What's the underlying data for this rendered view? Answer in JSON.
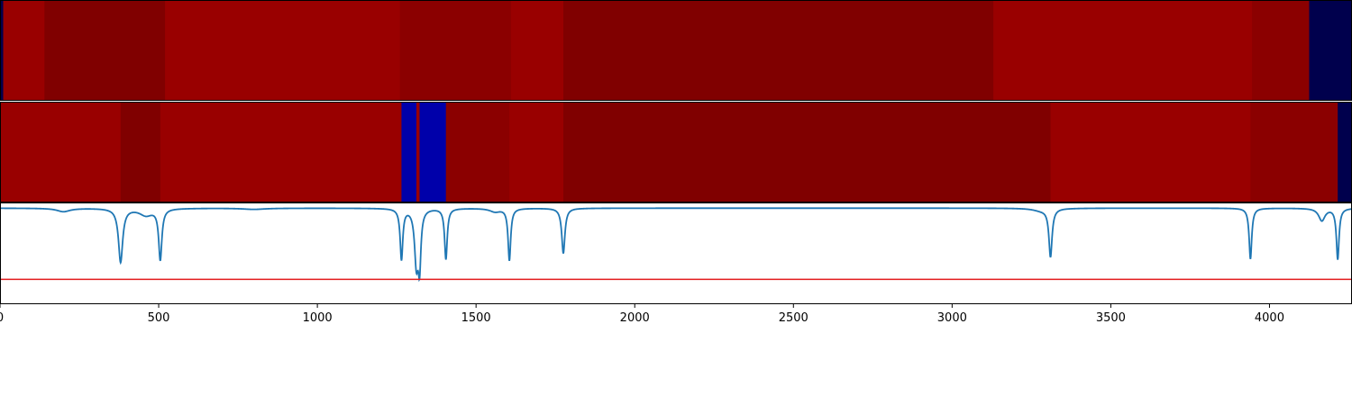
{
  "chart_data": [
    {
      "type": "heatmap",
      "title": "",
      "xlim": [
        0,
        4260
      ],
      "segments": [
        {
          "start": 0,
          "end": 10,
          "color": "#00004d"
        },
        {
          "start": 10,
          "end": 140,
          "color": "#990000"
        },
        {
          "start": 140,
          "end": 520,
          "color": "#800000"
        },
        {
          "start": 520,
          "end": 1260,
          "color": "#990000"
        },
        {
          "start": 1260,
          "end": 1610,
          "color": "#8b0000"
        },
        {
          "start": 1610,
          "end": 1775,
          "color": "#990000"
        },
        {
          "start": 1775,
          "end": 3130,
          "color": "#800000"
        },
        {
          "start": 3130,
          "end": 3945,
          "color": "#990000"
        },
        {
          "start": 3945,
          "end": 4125,
          "color": "#8b0000"
        },
        {
          "start": 4125,
          "end": 4260,
          "color": "#00004d"
        }
      ]
    },
    {
      "type": "heatmap",
      "title": "",
      "xlim": [
        0,
        4260
      ],
      "segments": [
        {
          "start": 0,
          "end": 380,
          "color": "#990000"
        },
        {
          "start": 380,
          "end": 505,
          "color": "#800000"
        },
        {
          "start": 505,
          "end": 1265,
          "color": "#990000"
        },
        {
          "start": 1265,
          "end": 1312,
          "color": "#0000aa"
        },
        {
          "start": 1312,
          "end": 1322,
          "color": "#990000"
        },
        {
          "start": 1322,
          "end": 1405,
          "color": "#0000aa"
        },
        {
          "start": 1405,
          "end": 1605,
          "color": "#8b0000"
        },
        {
          "start": 1605,
          "end": 1775,
          "color": "#990000"
        },
        {
          "start": 1775,
          "end": 3310,
          "color": "#800000"
        },
        {
          "start": 3310,
          "end": 3940,
          "color": "#990000"
        },
        {
          "start": 3940,
          "end": 4215,
          "color": "#8b0000"
        },
        {
          "start": 4215,
          "end": 4260,
          "color": "#00004d"
        }
      ]
    },
    {
      "type": "line",
      "title": "",
      "xlabel": "",
      "ylabel": "",
      "xlim": [
        0,
        4260
      ],
      "ylim": [
        -1.7,
        0.1
      ],
      "x_ticks": [
        0,
        500,
        1000,
        1500,
        2000,
        2500,
        3000,
        3500,
        4000
      ],
      "x_tick_labels": [
        "0",
        "500",
        "1000",
        "1500",
        "2000",
        "2500",
        "3000",
        "3500",
        "4000"
      ],
      "baseline": 0.0,
      "dips": [
        {
          "center": 200,
          "depth": 0.06,
          "width": 25
        },
        {
          "center": 380,
          "depth": 0.95,
          "width": 8
        },
        {
          "center": 460,
          "depth": 0.12,
          "width": 25
        },
        {
          "center": 505,
          "depth": 0.9,
          "width": 6
        },
        {
          "center": 800,
          "depth": 0.02,
          "width": 40
        },
        {
          "center": 1265,
          "depth": 0.9,
          "width": 5
        },
        {
          "center": 1312,
          "depth": 0.95,
          "width": 7
        },
        {
          "center": 1322,
          "depth": 0.93,
          "width": 5
        },
        {
          "center": 1405,
          "depth": 0.9,
          "width": 5
        },
        {
          "center": 1560,
          "depth": 0.06,
          "width": 20
        },
        {
          "center": 1605,
          "depth": 0.92,
          "width": 5
        },
        {
          "center": 1775,
          "depth": 0.8,
          "width": 6
        },
        {
          "center": 3280,
          "depth": 0.04,
          "width": 30
        },
        {
          "center": 3310,
          "depth": 0.85,
          "width": 6
        },
        {
          "center": 3940,
          "depth": 0.9,
          "width": 5
        },
        {
          "center": 4165,
          "depth": 0.22,
          "width": 12
        },
        {
          "center": 4215,
          "depth": 0.9,
          "width": 5
        }
      ],
      "threshold": -1.26,
      "series": [
        {
          "color": "#1f77b4"
        }
      ],
      "threshold_color": "#e31a1c"
    }
  ]
}
